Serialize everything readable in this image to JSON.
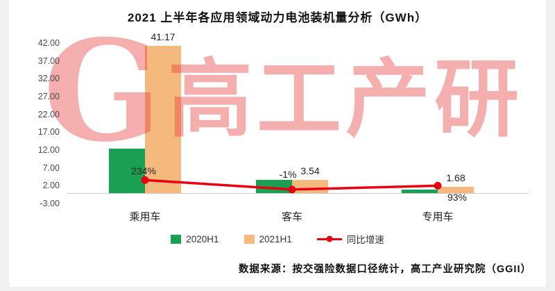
{
  "page": {
    "title": "2021 上半年各应用领域动力电池装机量分析（GWh）",
    "source": "数据来源：按交强险数据口径统计，高工产业研究院（GGII）",
    "watermark": {
      "letter": "G",
      "text": "高工产研"
    }
  },
  "legend": {
    "items": [
      {
        "label": "2020H1",
        "color": "#1aa053",
        "type": "square"
      },
      {
        "label": "2021H1",
        "color": "#f5b97e",
        "type": "square"
      },
      {
        "label": "同比增速",
        "color": "#e60012",
        "type": "line"
      }
    ]
  },
  "chart_data": {
    "type": "bar",
    "subtype": "grouped bars with overlaid line (secondary % axis)",
    "title": "2021 上半年各应用领域动力电池装机量分析（GWh）",
    "categories": [
      "乘用车",
      "客车",
      "专用车"
    ],
    "y_axis": {
      "ticks": [
        "42.00",
        "37.00",
        "32.00",
        "27.00",
        "22.00",
        "17.00",
        "12.00",
        "7.00",
        "2.00",
        "-3.00"
      ],
      "min": -3,
      "max": 42
    },
    "series": [
      {
        "name": "2020H1",
        "type": "bar",
        "color": "#1aa053",
        "values": [
          12.3,
          3.6,
          0.9
        ]
      },
      {
        "name": "2021H1",
        "type": "bar",
        "color": "#f5b97e",
        "values": [
          41.17,
          3.54,
          1.68
        ],
        "data_labels": [
          "41.17",
          "3.54",
          "1.68"
        ]
      },
      {
        "name": "同比增速",
        "type": "line",
        "color": "#e60012",
        "values_percent": [
          234,
          -1,
          93
        ],
        "data_labels": [
          "234%",
          "-1%",
          "93%"
        ]
      }
    ],
    "legend_position": "bottom",
    "grid": false
  }
}
